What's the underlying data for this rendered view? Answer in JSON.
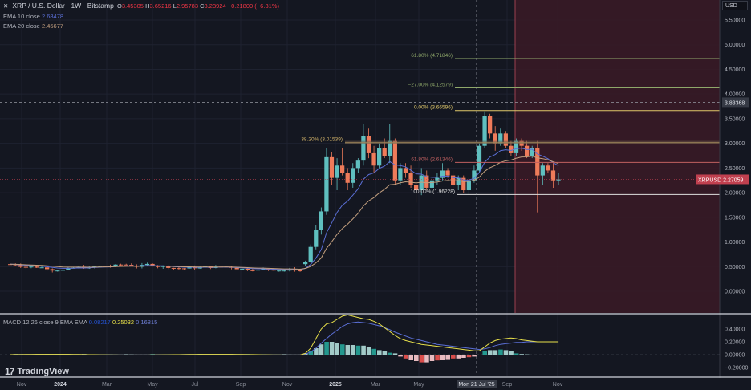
{
  "header": {
    "close_icon": "✕",
    "title": "XRP / U.S. Dollar · 1W · Bitstamp",
    "ohlc": [
      {
        "label": "O",
        "value": "3.45305"
      },
      {
        "label": "H",
        "value": "3.65216"
      },
      {
        "label": "L",
        "value": "2.95783"
      },
      {
        "label": "C",
        "value": "3.23924"
      }
    ],
    "change": "−0.21800 (−6.31%)"
  },
  "indicators": {
    "ema10": {
      "label": "EMA 10 close",
      "value": "2.68478"
    },
    "ema20": {
      "label": "EMA 20 close",
      "value": "2.45677"
    },
    "macd": {
      "label": "MACD 12 26 close 9 EMA EMA",
      "values": [
        "0.08217",
        "0.25032",
        "0.16815"
      ]
    }
  },
  "price_axis": {
    "currency": "USD",
    "ticks": [
      "5.50000",
      "5.00000",
      "4.50000",
      "4.00000",
      "3.50000",
      "3.00000",
      "2.50000",
      "2.00000",
      "1.50000",
      "1.00000",
      "0.50000",
      "0.00000"
    ],
    "crosshair_price": "3.83368",
    "symbol_label": "XRPUSD",
    "last_price": "2.27059"
  },
  "macd_axis": {
    "ticks": [
      "0.40000",
      "0.20000",
      "0.00000",
      "−0.20000"
    ]
  },
  "time_axis": {
    "ticks": [
      "Nov",
      "2024",
      "Mar",
      "May",
      "Jul",
      "Sep",
      "Nov",
      "2025",
      "Mar",
      "May",
      "Sep",
      "Nov"
    ],
    "crosshair_date": "Mon 21 Jul '25"
  },
  "fib_levels": [
    {
      "label": "−61.80% (4.71846)",
      "price": 4.71846,
      "color": "#8fa86a"
    },
    {
      "label": "−27.00% (4.12579)",
      "price": 4.12579,
      "color": "#8fa86a"
    },
    {
      "label": "0.00% (3.66596)",
      "price": 3.66596,
      "color": "#e0c86a"
    },
    {
      "label": "38.20% (3.01539)",
      "price": 3.01539,
      "color": "#d4b46a"
    },
    {
      "label": "61.80% (2.61346)",
      "price": 2.61346,
      "color": "#c06060"
    },
    {
      "label": "100.00% (1.96228)",
      "price": 1.96228,
      "color": "#e0e0e0"
    }
  ],
  "branding": {
    "logo_text": "TradingView",
    "logo_mark": "17"
  },
  "colors": {
    "up": "#5fbfbf",
    "down": "#ef7b5a",
    "bg": "#141721",
    "highlight_zone": "#3a1a26"
  },
  "chart_data": {
    "type": "candlestick",
    "title": "XRP / U.S. Dollar · 1W · Bitstamp",
    "xlabel": "",
    "ylabel": "USD",
    "ylim": [
      -0.15,
      5.7
    ],
    "x_range": [
      "Oct 2023",
      "Nov 2025"
    ],
    "series": [
      {
        "name": "EMA 10 close",
        "last": 2.68478
      },
      {
        "name": "EMA 20 close",
        "last": 2.45677
      },
      {
        "name": "MACD",
        "values_last": [
          0.08217,
          0.25032,
          0.16815
        ]
      }
    ],
    "key_points": [
      {
        "date": "Nov 2023 - Oct 2024",
        "approx_price_range": [
          0.45,
          0.7
        ]
      },
      {
        "date": "Dec 2024",
        "approx_high": 2.9
      },
      {
        "date": "Jan 2025",
        "approx_high": 3.4
      },
      {
        "date": "Jul 2025",
        "high": 3.65216
      },
      {
        "date": "Nov 2025",
        "last": 2.27059
      }
    ]
  }
}
